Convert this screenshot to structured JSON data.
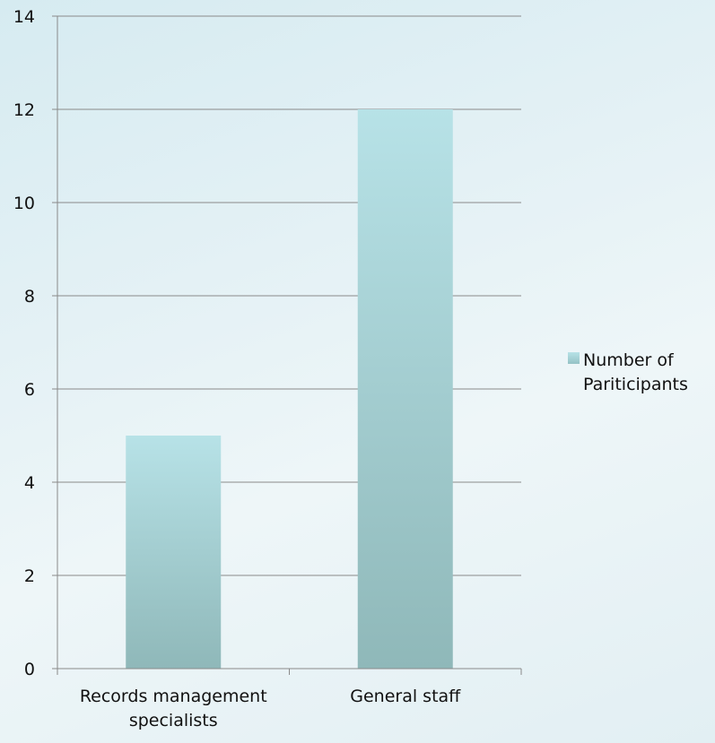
{
  "chart_data": {
    "type": "bar",
    "categories": [
      [
        "Records management",
        "specialists"
      ],
      [
        "General staff"
      ]
    ],
    "series": [
      {
        "name": [
          "Number of",
          "Pariticipants"
        ],
        "values": [
          5,
          12
        ],
        "color": "#a9d3d8"
      }
    ],
    "ylim": [
      0,
      14
    ],
    "yticks": [
      0,
      2,
      4,
      6,
      8,
      10,
      12,
      14
    ],
    "grid": true,
    "legend": "right"
  }
}
